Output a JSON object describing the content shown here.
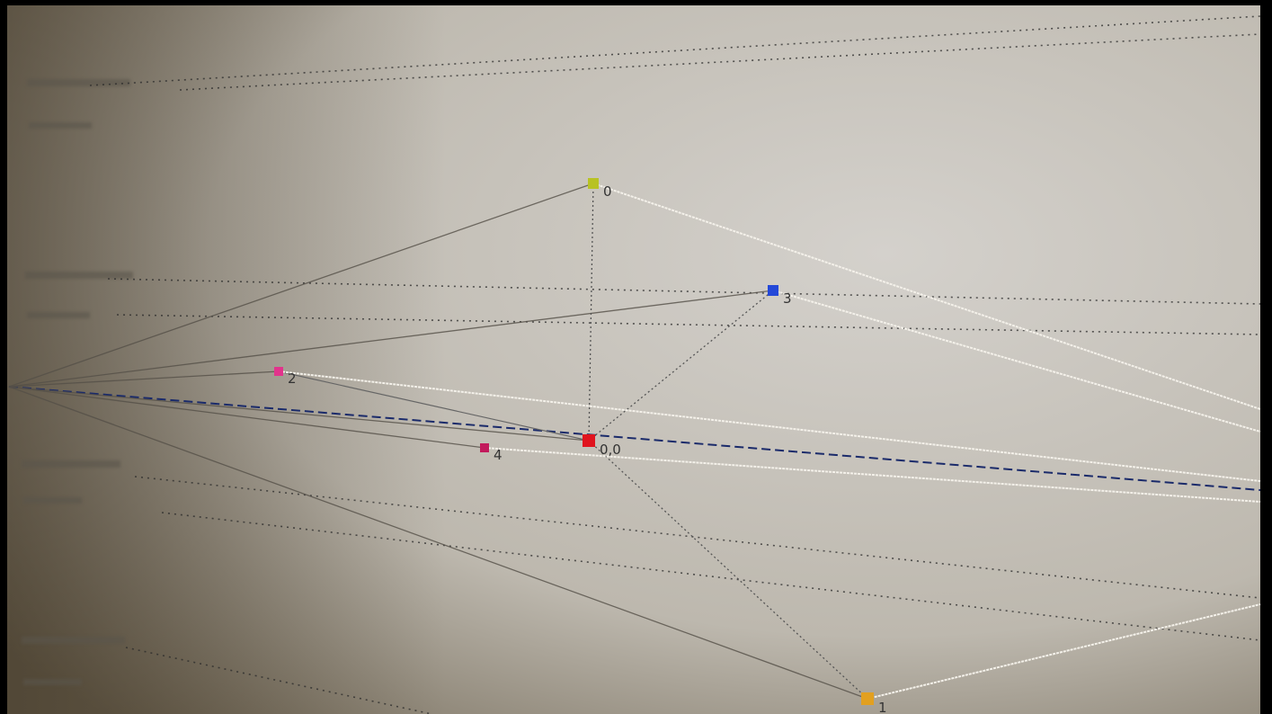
{
  "nodes": [
    {
      "label": "0",
      "color": "#b8c224"
    },
    {
      "label": "3",
      "color": "#2448d8"
    },
    {
      "label": "2",
      "color": "#e2338c"
    },
    {
      "label": "4",
      "color": "#c21a5c"
    },
    {
      "label": "0,0",
      "color": "#e0141e"
    },
    {
      "label": "1",
      "color": "#e2a020"
    }
  ]
}
